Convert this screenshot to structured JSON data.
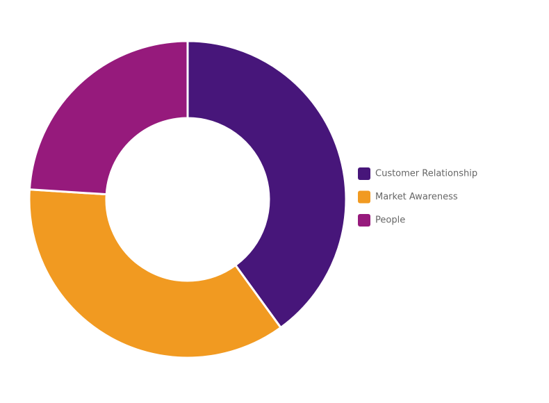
{
  "chart_data": {
    "type": "donut",
    "categories": [
      "Customer Relationship",
      "Market Awareness",
      "People"
    ],
    "values": [
      40,
      36,
      24
    ],
    "colors": [
      "#47167a",
      "#f19a21",
      "#961a7c"
    ],
    "legend": "right"
  }
}
